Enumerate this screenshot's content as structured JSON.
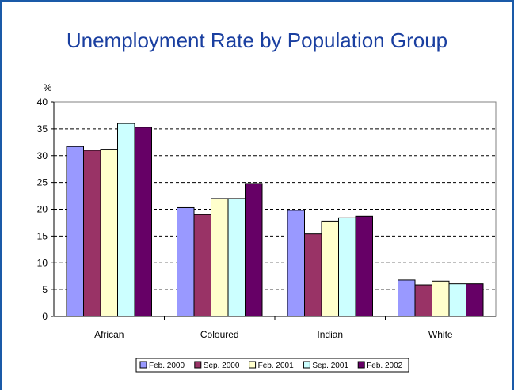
{
  "slide": {
    "title": "Unemployment Rate by Population Group"
  },
  "chart_data": {
    "type": "bar",
    "title": "",
    "ylabel": "%",
    "xlabel": "",
    "ylim": [
      0,
      40
    ],
    "yticks": [
      0,
      5,
      10,
      15,
      20,
      25,
      30,
      35,
      40
    ],
    "grid": true,
    "legend_position": "bottom",
    "categories": [
      "African",
      "Coloured",
      "Indian",
      "White"
    ],
    "series": [
      {
        "name": "Feb. 2000",
        "color": "#9999ff",
        "values": [
          31.7,
          20.3,
          19.8,
          6.8
        ]
      },
      {
        "name": "Sep. 2000",
        "color": "#993366",
        "values": [
          31.0,
          19.0,
          15.4,
          5.9
        ]
      },
      {
        "name": "Feb. 2001",
        "color": "#ffffcc",
        "values": [
          31.2,
          22.0,
          17.8,
          6.6
        ]
      },
      {
        "name": "Sep. 2001",
        "color": "#ccffff",
        "values": [
          36.0,
          22.0,
          18.4,
          6.1
        ]
      },
      {
        "name": "Feb. 2002",
        "color": "#660066",
        "values": [
          35.3,
          24.8,
          18.7,
          6.1
        ]
      }
    ]
  }
}
